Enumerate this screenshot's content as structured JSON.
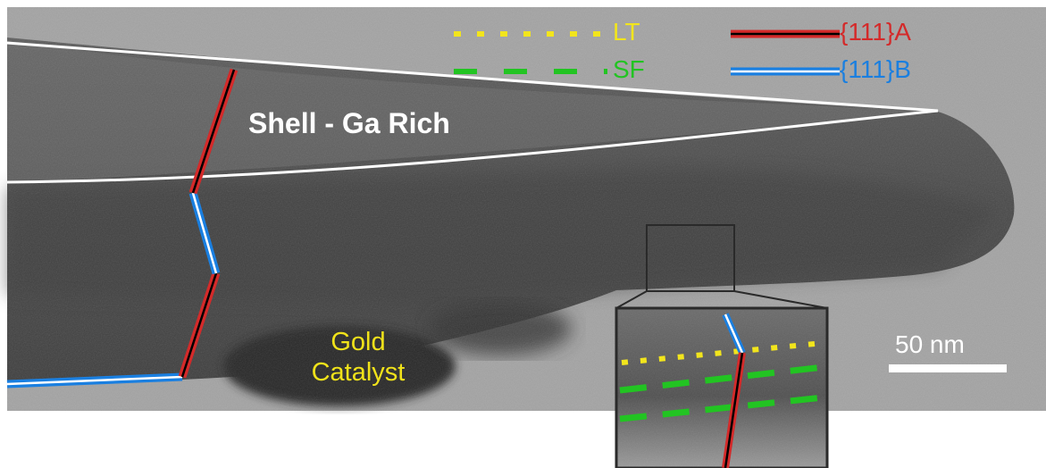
{
  "legend": {
    "lt": "LT",
    "sf": "SF",
    "a111": "{111}A",
    "b111": "{111}B"
  },
  "labels": {
    "shell": "Shell - Ga Rich",
    "gold_line1": "Gold",
    "gold_line2": "Catalyst"
  },
  "scale_bar": {
    "label": "50 nm"
  },
  "colors": {
    "lt": "#f2e51c",
    "sf": "#22c422",
    "a111": "#d42a2a",
    "b111": "#1a7fe0",
    "gold_text": "#f0e21a",
    "shell_text": "#ffffff",
    "scale": "#ffffff"
  }
}
